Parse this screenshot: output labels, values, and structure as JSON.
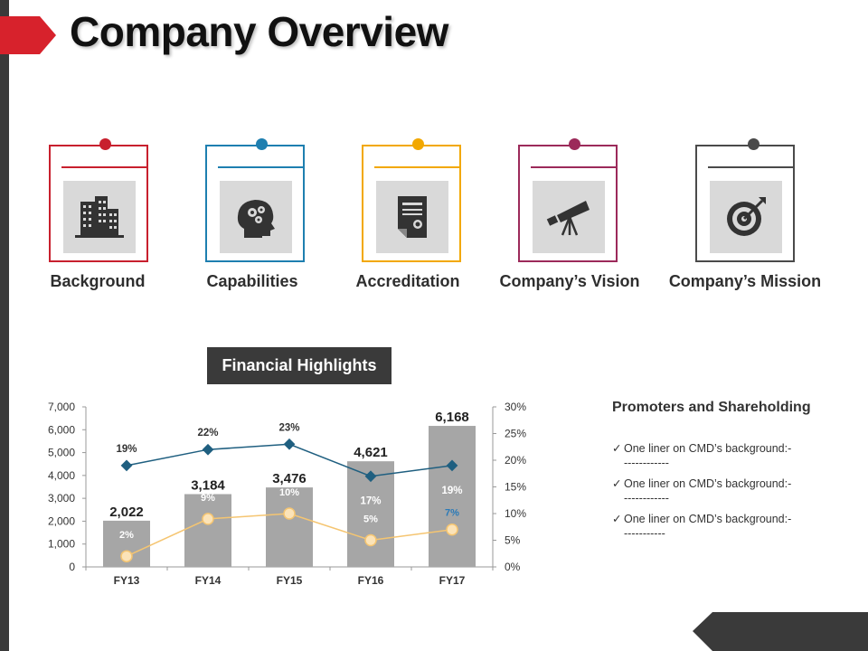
{
  "title": "Company Overview",
  "colors": {
    "accent_red": "#d7222c",
    "dark": "#3a3a3a",
    "bar": "#a6a6a6",
    "line_blue": "#1f5f80",
    "line_yellow": "#f5c571"
  },
  "cards": [
    {
      "label": "Background",
      "color": "#c8202e",
      "icon": "buildings-icon"
    },
    {
      "label": "Capabilities",
      "color": "#1e7fb0",
      "icon": "brain-gears-icon"
    },
    {
      "label": "Accreditation",
      "color": "#f2a800",
      "icon": "certificate-icon"
    },
    {
      "label": "Company’s Vision",
      "color": "#9c2a5a",
      "icon": "telescope-icon"
    },
    {
      "label": "Company’s Mission",
      "color": "#4a4a4a",
      "icon": "target-icon"
    }
  ],
  "financial": {
    "badge": "Financial Highlights"
  },
  "chart_data": {
    "type": "bar",
    "categories": [
      "FY13",
      "FY14",
      "FY15",
      "FY16",
      "FY17"
    ],
    "series": [
      {
        "values": [
          2022,
          3184,
          3476,
          4621,
          6168
        ],
        "type": "bar",
        "axis": "left",
        "data_labels": [
          "2,022",
          "3,184",
          "3,476",
          "4,621",
          "6,168"
        ]
      },
      {
        "values": [
          19,
          22,
          23,
          17,
          19
        ],
        "type": "line",
        "axis": "right",
        "unit": "%",
        "color": "#1f5f80"
      },
      {
        "values": [
          2,
          9,
          10,
          5,
          7
        ],
        "type": "line",
        "axis": "right",
        "unit": "%",
        "color": "#f5c571"
      }
    ],
    "y_left": {
      "min": 0,
      "max": 7000,
      "ticks": [
        "0",
        "1,000",
        "2,000",
        "3,000",
        "4,000",
        "5,000",
        "6,000",
        "7,000"
      ]
    },
    "y_right": {
      "min": 0,
      "max": 30,
      "ticks": [
        "0%",
        "5%",
        "10%",
        "15%",
        "20%",
        "25%",
        "30%"
      ]
    },
    "grid": false,
    "legend": "none"
  },
  "promoters": {
    "title": "Promoters and Shareholding",
    "items": [
      {
        "check": "✓",
        "text": "One liner on CMD’s background:-------------"
      },
      {
        "check": "✓",
        "text": "One liner on CMD’s background:-------------"
      },
      {
        "check": "✓",
        "text": "One liner on CMD’s background:------------"
      }
    ]
  }
}
